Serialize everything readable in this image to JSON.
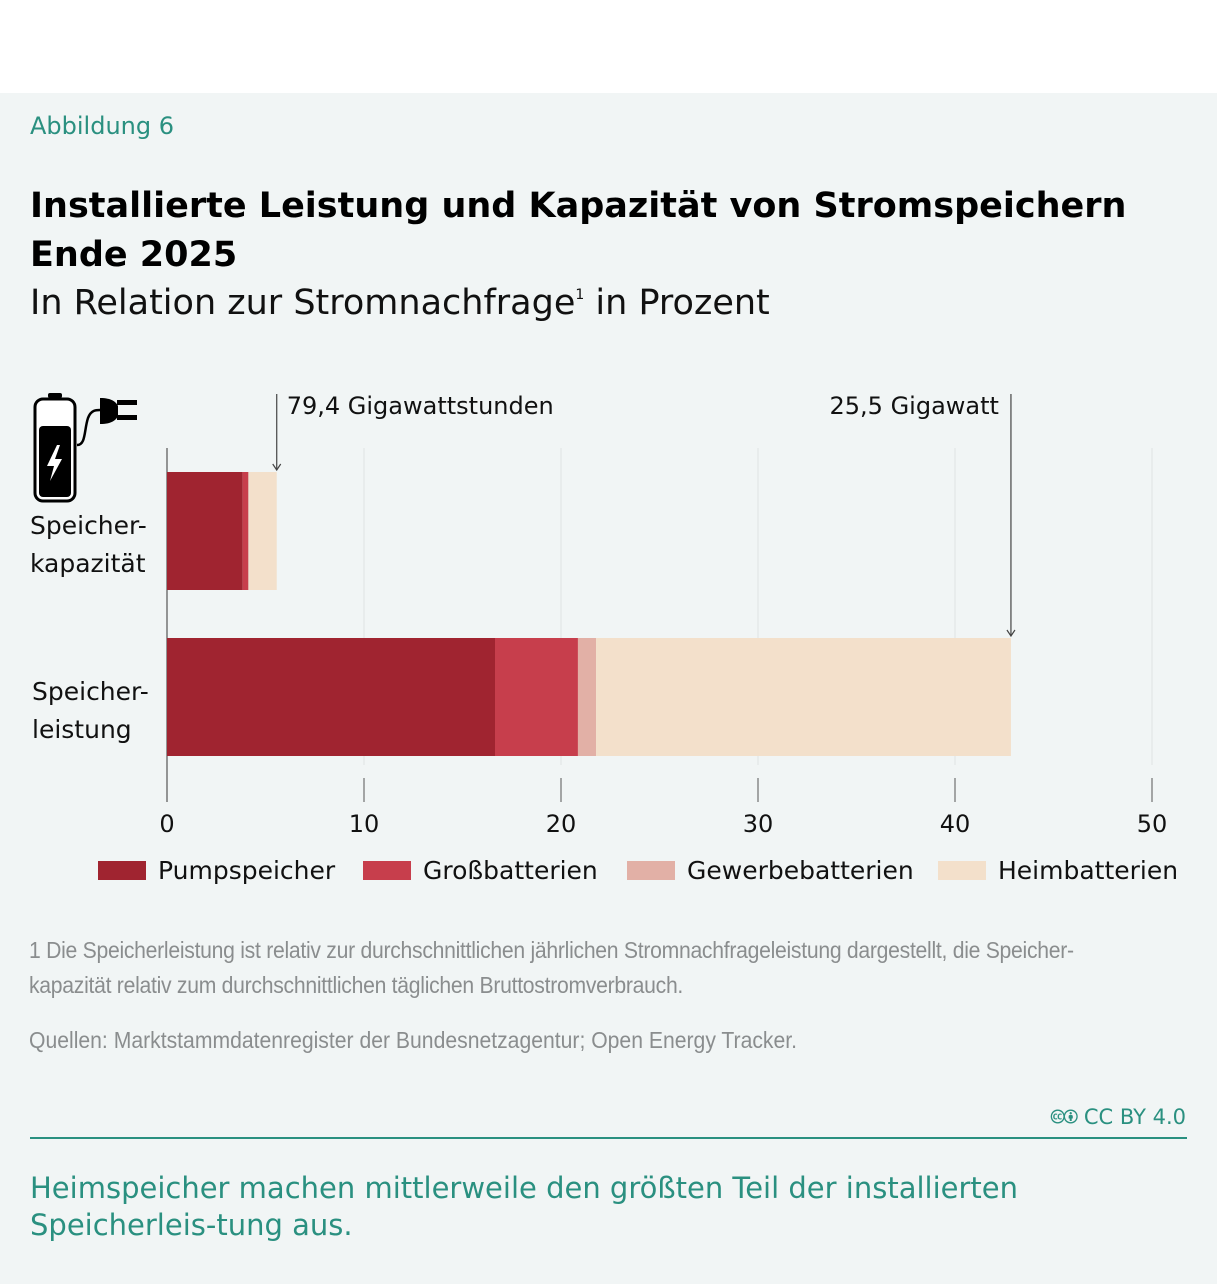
{
  "figure_label": "Abbildung 6",
  "title": "Installierte Leistung und Kapazität von Stromspeichern Ende 2025",
  "subtitle": "In Relation zur Stromnachfrage",
  "subtitle_footnote": "1",
  "subtitle_suffix": " in Prozent",
  "chart_data": {
    "type": "bar",
    "orientation": "horizontal",
    "stacked": true,
    "categories": [
      "Speicher-kapazität",
      "Speicher-leistung"
    ],
    "category_lines": [
      [
        "Speicher-",
        "kapazität"
      ],
      [
        "Speicher-",
        "leistung"
      ]
    ],
    "series": [
      {
        "name": "Pumpspeicher",
        "color": "#a02430",
        "values": [
          3.84,
          16.65
        ]
      },
      {
        "name": "Großbatterien",
        "color": "#c73e4c",
        "values": [
          0.28,
          4.21
        ]
      },
      {
        "name": "Gewerbebatterien",
        "color": "#e2b0a6",
        "values": [
          0.05,
          0.92
        ]
      },
      {
        "name": "Heimbatterien",
        "color": "#f3e0cb",
        "values": [
          1.4,
          21.06
        ]
      }
    ],
    "xlim": [
      0,
      50
    ],
    "xticks": [
      0,
      10,
      20,
      30,
      40,
      50
    ],
    "grid": true,
    "legend": "bottom",
    "annotations": [
      {
        "text": "79,4 Gigawattstunden",
        "category": "Speicher-kapazität",
        "value": 5.57
      },
      {
        "text": "25,5 Gigawatt",
        "category": "Speicher-leistung",
        "value": 42.84
      }
    ],
    "icon": "battery-plug-icon"
  },
  "footnote": "1  Die Speicherleistung ist relativ zur durchschnittlichen jährlichen Stromnachfrageleistung dargestellt, die Speicher-kapazität relativ zum durchschnittlichen täglichen Bruttostromverbrauch.",
  "sources": "Quellen: Marktstammdatenregister der Bundesnetzagentur; Open Energy Tracker.",
  "license": "CC BY 4.0",
  "takeaway": "Heimspeicher machen mittlerweile den größten Teil der installierten Speicherleis-tung aus."
}
